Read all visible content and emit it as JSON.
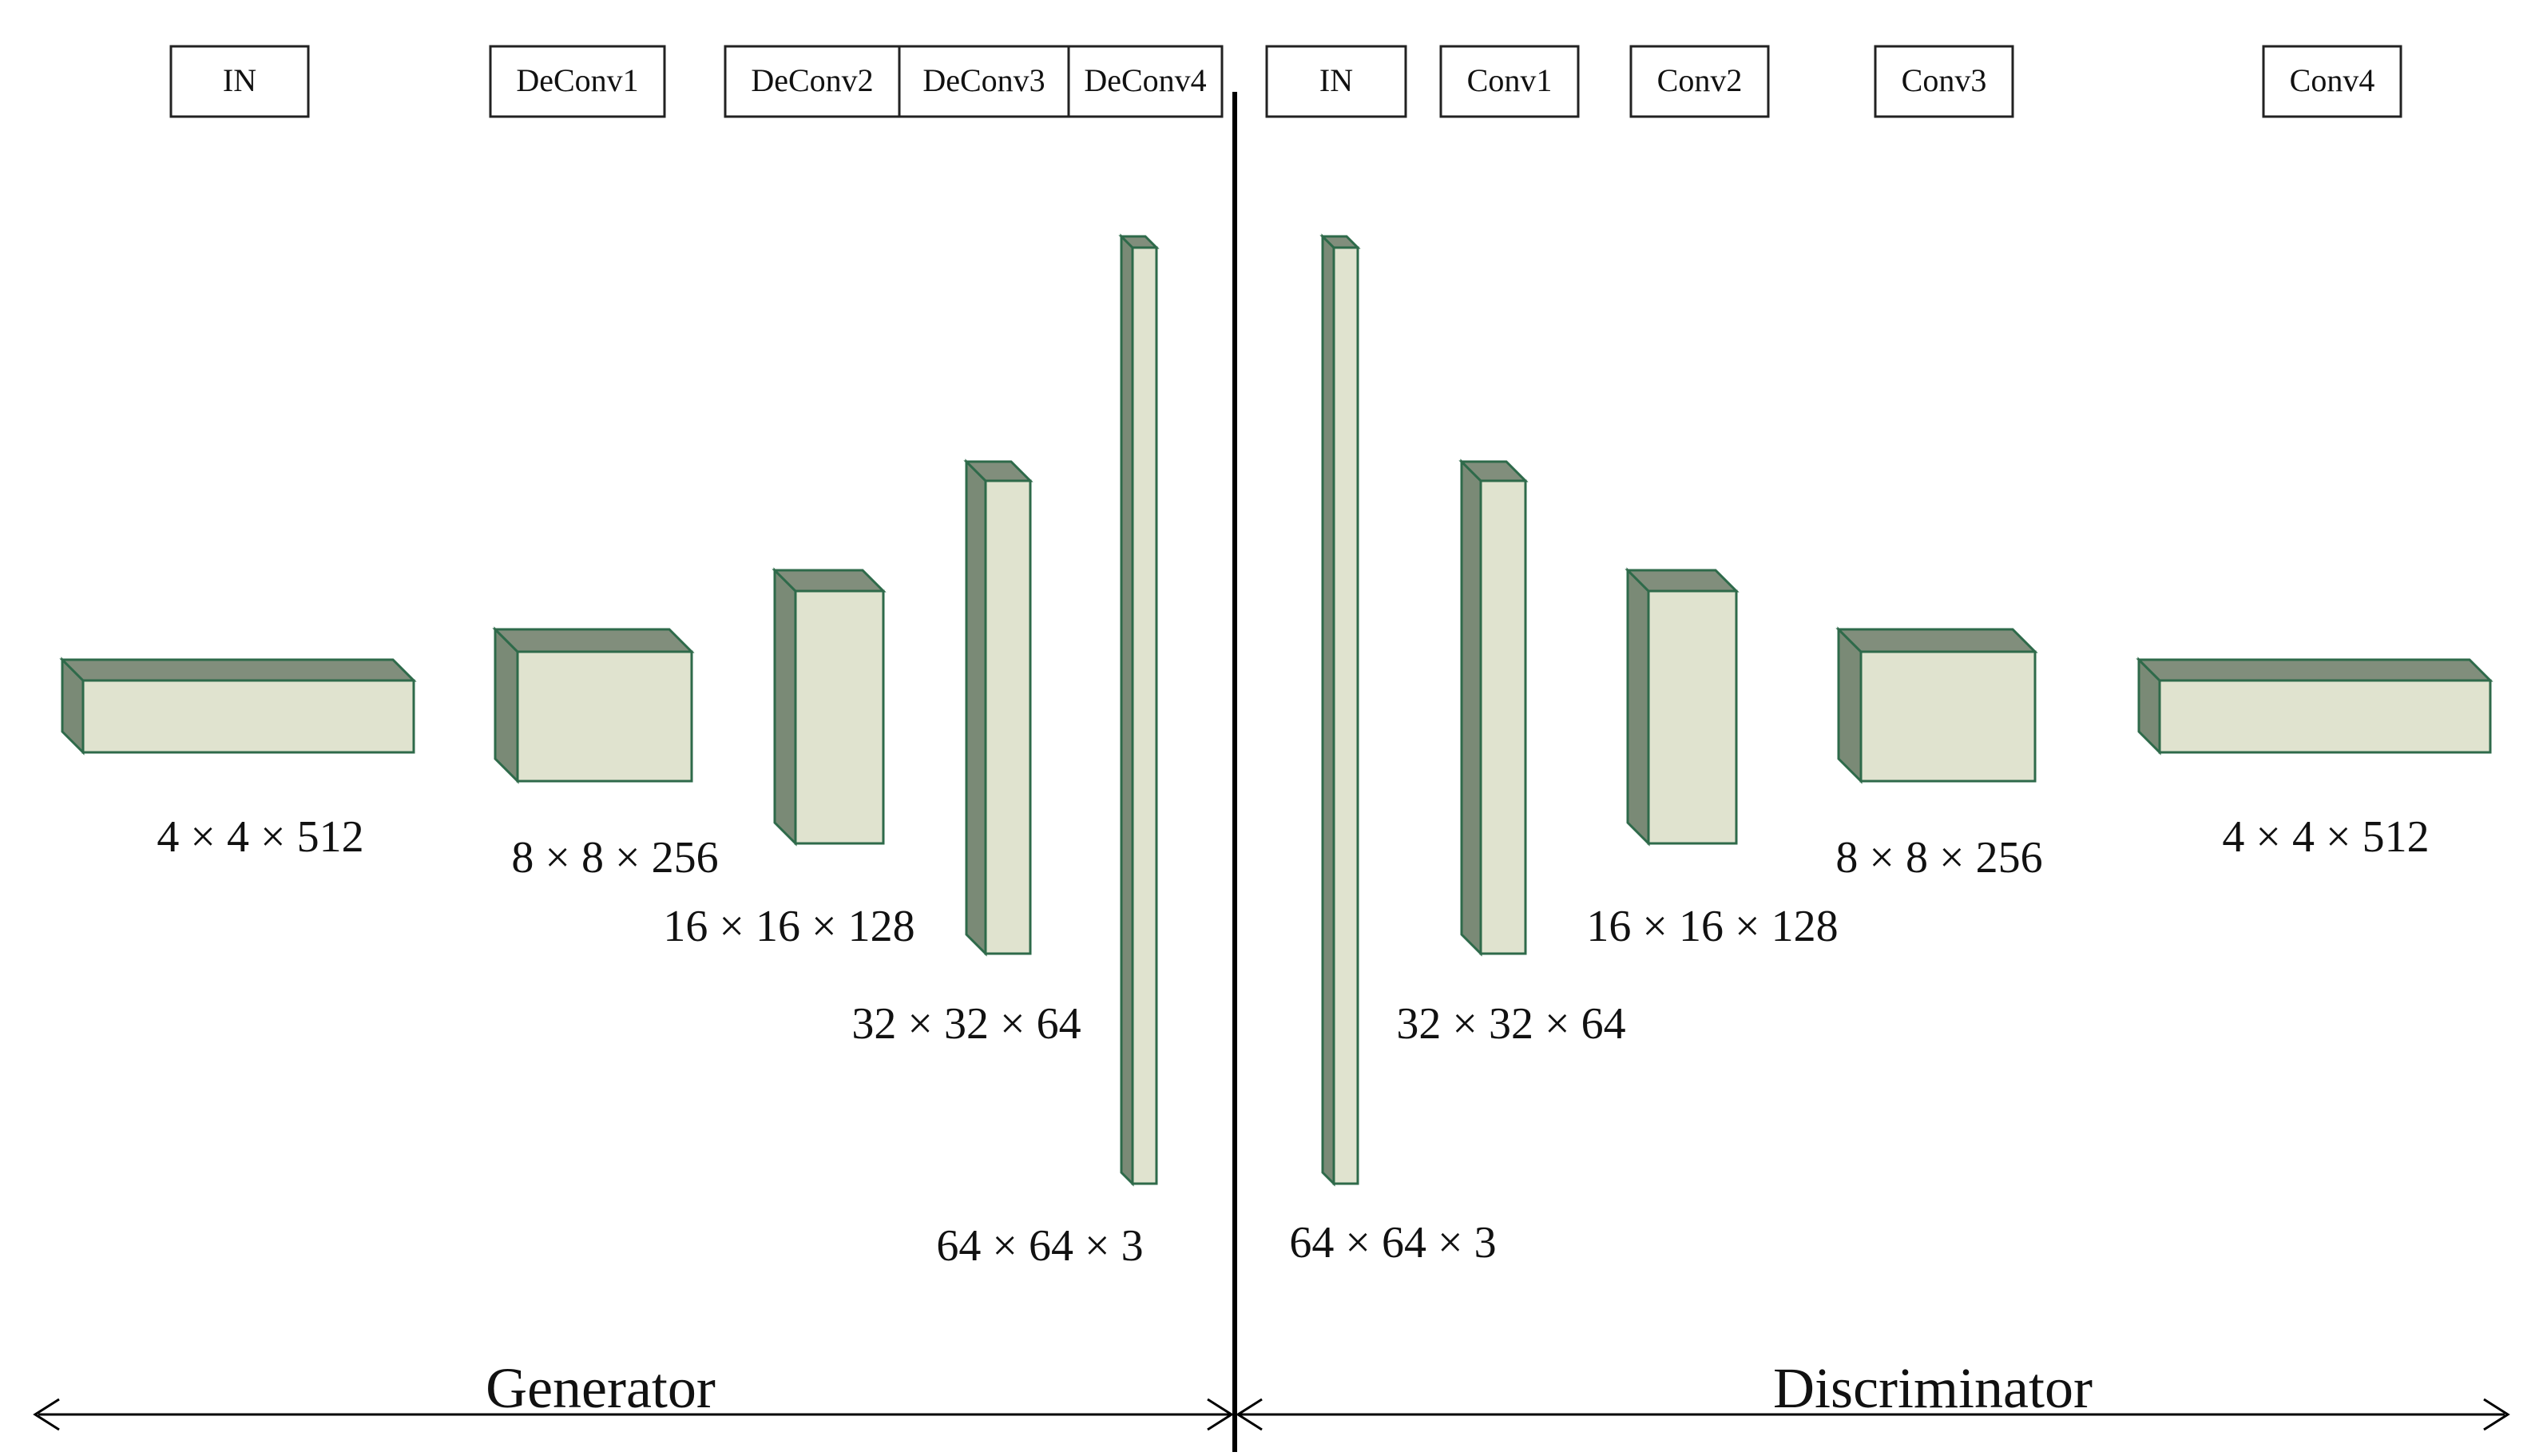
{
  "colors": {
    "front": "#e0e3cf",
    "side": "#7a8a76",
    "top": "#818e7c",
    "edge": "#2e6a4a",
    "line": "#000000",
    "box_border": "#222222"
  },
  "generator": {
    "label": "Generator",
    "headers": [
      "IN",
      "DeConv1",
      "DeConv2",
      "DeConv3",
      "DeConv4"
    ],
    "dims": [
      "4 × 4 × 512",
      "8 × 8 × 256",
      "16 × 16 × 128",
      "32 × 32 × 64",
      "64 × 64 × 3"
    ]
  },
  "discriminator": {
    "label": "Discriminator",
    "headers": [
      "IN",
      "Conv1",
      "Conv2",
      "Conv3",
      "Conv4"
    ],
    "dims": [
      "64 × 64 × 3",
      "32 × 32 × 64",
      "16 × 16 × 128",
      "8 × 8 × 256",
      "4 × 4 × 512"
    ]
  }
}
